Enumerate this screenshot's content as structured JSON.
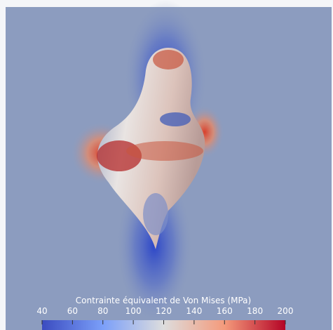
{
  "colorbar": {
    "title": "Contrainte équivalent de Von Mises (MPa)",
    "lim": [
      40,
      200
    ],
    "ticks": [
      40,
      60,
      80,
      100,
      120,
      140,
      160,
      180,
      200
    ]
  }
}
